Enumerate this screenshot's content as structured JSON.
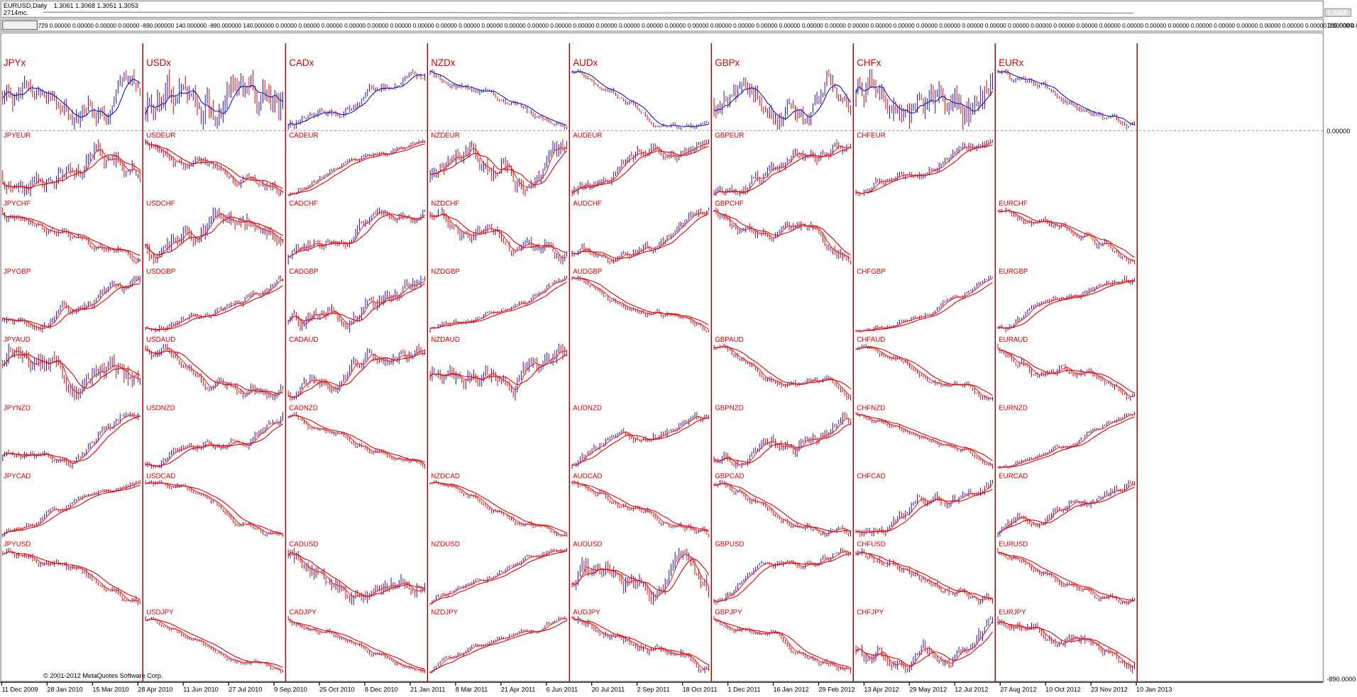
{
  "header": {
    "symbol": "EURUSD,Daily",
    "prices": "1.3061 1.3068 1.3051 1.3053",
    "sub": "2714mc.",
    "price_tag": "1.3053"
  },
  "indicator": {
    "values": "729 0.00000 0.00000 0.00000 0.00000 -890.000000 140.000000 -890.000000 140.000000 0.00000 0.00000 0.00000 0.00000 0.00000 0.00000 0.00000 0.00000 0.00000 0.00000 0.00000 0.00000 0.00000 0.00000 0.00000 0.00000 0.00000 0.00000 0.00000 0.00000 0.00000 0.00000 0.00000 0.00000 0.00000 0.00000 0.00000 0.00000 0.00000 0.00000 0.00000 0.00000 0.00000 0.00000 0.00000 0.00000 0.00000 0.00000 0.00000 0.00000 0.00000 0.00000 0.00000 0.00000 0.00000 0.00000 0.00000 0.00000 0.00000 0.00000 0.00000 0.00000 0.00000 0.00000 0.00000 0.00000 0.00000 0.00000 0.00000 0.00000"
  },
  "right_axis": [
    "180.0000",
    "0.00000",
    "-890.0000"
  ],
  "columns": [
    {
      "title": "JPYx",
      "pairs": [
        "JPYEUR",
        "JPYCHF",
        "JPYGBP",
        "JPYAUD",
        "JPYNZD",
        "JPYCAD",
        "JPYUSD",
        null
      ]
    },
    {
      "title": "USDx",
      "pairs": [
        "USDEUR",
        "USDCHF",
        "USDGBP",
        "USDAUD",
        "USDNZD",
        "USDCAD",
        null,
        "USDJPY"
      ]
    },
    {
      "title": "CADx",
      "pairs": [
        "CADEUR",
        "CADCHF",
        "CADGBP",
        "CADAUD",
        "CADNZD",
        null,
        "CADUSD",
        "CADJPY"
      ]
    },
    {
      "title": "NZDx",
      "pairs": [
        "NZDEUR",
        "NZDCHF",
        "NZDGBP",
        "NZDAUD",
        null,
        "NZDCAD",
        "NZDUSD",
        "NZDJPY"
      ]
    },
    {
      "title": "AUDx",
      "pairs": [
        "AUDEUR",
        "AUDCHF",
        "AUDGBP",
        null,
        "AUDNZD",
        "AUDCAD",
        "AUDUSD",
        "AUDJPY"
      ]
    },
    {
      "title": "GBPx",
      "pairs": [
        "GBPEUR",
        "GBPCHF",
        null,
        "GBPAUD",
        "GBPNZD",
        "GBPCAD",
        "GBPUSD",
        "GBPJPY"
      ]
    },
    {
      "title": "CHFx",
      "pairs": [
        "CHFEUR",
        null,
        "CHFGBP",
        "CHFAUD",
        "CHFNZD",
        "CHFCAD",
        "CHFUSD",
        "CHFJPY"
      ]
    },
    {
      "title": "EURx",
      "pairs": [
        null,
        "EURCHF",
        "EURGBP",
        "EURAUD",
        "EURNZD",
        "EURCAD",
        "EURUSD",
        "EURJPY"
      ]
    }
  ],
  "copyright": "© 2001-2012 MetaQuotes Software Corp.",
  "dates": [
    "11 Dec 2009",
    "28 Jan 2010",
    "15 Mar 2010",
    "28 Apr 2010",
    "11 Jun 2010",
    "27 Jul 2010",
    "9 Sep 2010",
    "25 Oct 2010",
    "8 Dec 2010",
    "21 Jan 2011",
    "8 Mar 2011",
    "21 Apr 2011",
    "6 Jun 2011",
    "20 Jul 2011",
    "2 Sep 2011",
    "18 Oct 2011",
    "1 Dec 2011",
    "16 Jan 2012",
    "29 Feb 2012",
    "13 Apr 2012",
    "29 May 2012",
    "12 Jul 2012",
    "27 Aug 2012",
    "10 Oct 2012",
    "23 Nov 2012",
    "10 Jan 2013"
  ]
}
